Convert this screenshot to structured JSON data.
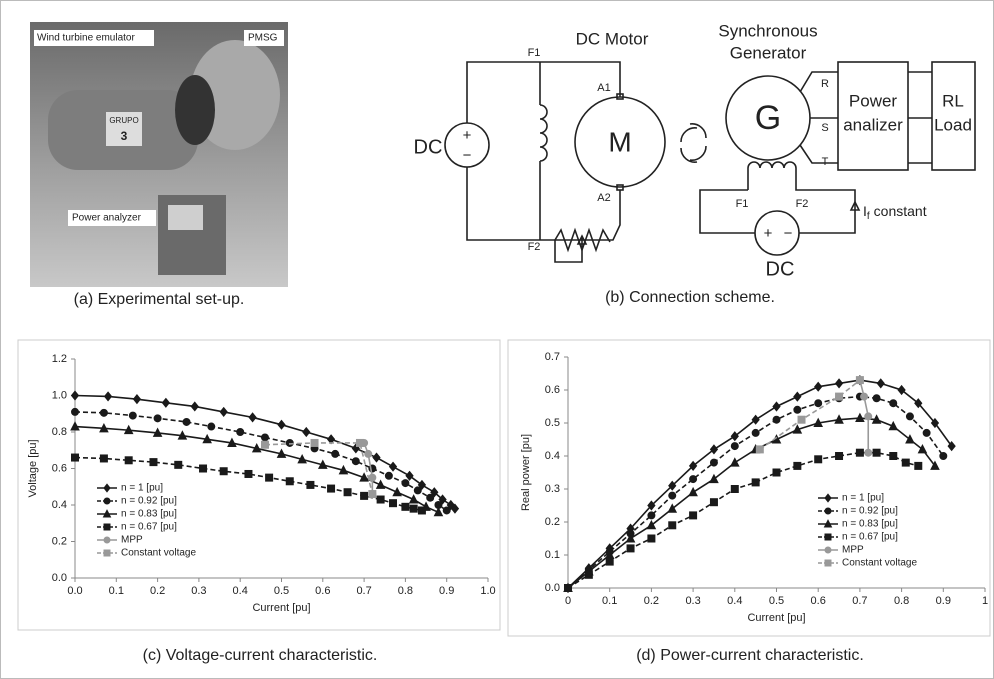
{
  "photo": {
    "labels": [
      "Wind turbine emulator",
      "PMSG",
      "GRUPO",
      "3",
      "Power analyzer"
    ]
  },
  "diagram": {
    "dc_motor": "DC Motor",
    "sync_gen": [
      "Synchronous",
      "Generator"
    ],
    "f1_motor": "F1",
    "f2_motor": "F2",
    "a1": "A1",
    "a2": "A2",
    "motor": "M",
    "dc_left": "DC",
    "plus_left": "+",
    "minus_left": "−",
    "generator": "G",
    "r": "R",
    "s": "S",
    "t": "T",
    "power_analyzer": [
      "Power",
      "analizer"
    ],
    "load": [
      "RL",
      "Load"
    ],
    "f1_gen": "F1",
    "f2_gen": "F2",
    "if_main": "I",
    "if_sub": "f",
    "if_rest": "constant",
    "dc_bottom": "DC",
    "plus_bottom": "+",
    "minus_bottom": "−"
  },
  "captions": [
    "(a) Experimental set-up.",
    "(b) Connection scheme.",
    "(c) Voltage-current characteristic.",
    "(d) Power-current characteristic."
  ],
  "chart_data": [
    {
      "type": "line",
      "x_label": "Current [pu]",
      "y_label": "Voltage [pu]",
      "xlim": [
        0,
        1
      ],
      "ylim": [
        0,
        1.2
      ],
      "xticks": [
        {
          "value": 0,
          "label": "0.0"
        },
        0.1,
        0.2,
        0.3,
        0.4,
        0.5,
        0.6,
        0.7,
        0.8,
        0.9,
        {
          "value": 1,
          "label": "1.0"
        }
      ],
      "yticks": [
        {
          "value": 0,
          "label": "0.0"
        },
        0.2,
        0.4,
        0.6,
        0.8,
        {
          "value": 1,
          "label": "1.0"
        },
        1.2
      ],
      "grid": false,
      "legend": "lower left",
      "series": [
        {
          "name": "n = 1 [pu]",
          "color": "#1a1a1a",
          "marker": "diamond",
          "dash": false,
          "x": [
            0,
            0.08,
            0.15,
            0.22,
            0.29,
            0.36,
            0.43,
            0.5,
            0.56,
            0.62,
            0.68,
            0.73,
            0.77,
            0.81,
            0.84,
            0.87,
            0.89,
            0.91,
            0.92
          ],
          "values": [
            1,
            0.995,
            0.98,
            0.96,
            0.94,
            0.91,
            0.88,
            0.84,
            0.8,
            0.76,
            0.71,
            0.66,
            0.61,
            0.56,
            0.51,
            0.47,
            0.43,
            0.4,
            0.38
          ]
        },
        {
          "name": "n = 0.92 [pu]",
          "color": "#1a1a1a",
          "marker": "circle",
          "dash": true,
          "x": [
            0,
            0.07,
            0.14,
            0.2,
            0.27,
            0.33,
            0.4,
            0.46,
            0.52,
            0.58,
            0.63,
            0.68,
            0.72,
            0.76,
            0.8,
            0.83,
            0.86,
            0.88,
            0.9
          ],
          "values": [
            0.91,
            0.905,
            0.89,
            0.875,
            0.855,
            0.83,
            0.8,
            0.77,
            0.74,
            0.71,
            0.68,
            0.64,
            0.6,
            0.56,
            0.52,
            0.48,
            0.44,
            0.4,
            0.37
          ]
        },
        {
          "name": "n = 0.83 [pu]",
          "color": "#1a1a1a",
          "marker": "triangle",
          "dash": false,
          "x": [
            0,
            0.07,
            0.13,
            0.2,
            0.26,
            0.32,
            0.38,
            0.44,
            0.5,
            0.55,
            0.6,
            0.65,
            0.7,
            0.74,
            0.78,
            0.82,
            0.85,
            0.88
          ],
          "values": [
            0.83,
            0.82,
            0.81,
            0.795,
            0.78,
            0.76,
            0.74,
            0.71,
            0.68,
            0.65,
            0.62,
            0.59,
            0.55,
            0.51,
            0.47,
            0.43,
            0.39,
            0.36
          ]
        },
        {
          "name": "n = 0.67 [pu]",
          "color": "#1a1a1a",
          "marker": "square",
          "dash": true,
          "x": [
            0,
            0.07,
            0.13,
            0.19,
            0.25,
            0.31,
            0.36,
            0.42,
            0.47,
            0.52,
            0.57,
            0.62,
            0.66,
            0.7,
            0.74,
            0.77,
            0.8,
            0.82,
            0.84
          ],
          "values": [
            0.66,
            0.655,
            0.645,
            0.635,
            0.62,
            0.6,
            0.585,
            0.57,
            0.55,
            0.53,
            0.51,
            0.49,
            0.47,
            0.45,
            0.43,
            0.41,
            0.39,
            0.38,
            0.37
          ]
        },
        {
          "name": "MPP",
          "color": "#999999",
          "marker": "circle",
          "dash": false,
          "x": [
            0.7,
            0.71,
            0.72,
            0.72
          ],
          "values": [
            0.74,
            0.68,
            0.55,
            0.46
          ]
        },
        {
          "name": "Constant voltage",
          "color": "#999999",
          "marker": "square",
          "dash": true,
          "x": [
            0.46,
            0.58,
            0.69,
            0.72
          ],
          "values": [
            0.73,
            0.74,
            0.74,
            0.46
          ]
        }
      ]
    },
    {
      "type": "line",
      "x_label": "Current [pu]",
      "y_label": "Real power [pu]",
      "xlim": [
        0,
        1
      ],
      "ylim": [
        0,
        0.7
      ],
      "xticks": [
        0,
        0.1,
        0.2,
        0.3,
        0.4,
        0.5,
        0.6,
        0.7,
        0.8,
        0.9,
        1
      ],
      "yticks": [
        {
          "value": 0,
          "label": "0.0"
        },
        0.1,
        0.2,
        0.3,
        0.4,
        0.5,
        0.6,
        0.7
      ],
      "grid": false,
      "legend": "lower right",
      "series": [
        {
          "name": "n = 1 [pu]",
          "color": "#1a1a1a",
          "marker": "diamond",
          "dash": false,
          "x": [
            0,
            0.05,
            0.1,
            0.15,
            0.2,
            0.25,
            0.3,
            0.35,
            0.4,
            0.45,
            0.5,
            0.55,
            0.6,
            0.65,
            0.7,
            0.75,
            0.8,
            0.84,
            0.88,
            0.92
          ],
          "values": [
            0,
            0.06,
            0.12,
            0.18,
            0.25,
            0.31,
            0.37,
            0.42,
            0.46,
            0.51,
            0.55,
            0.58,
            0.61,
            0.62,
            0.63,
            0.62,
            0.6,
            0.56,
            0.5,
            0.43
          ]
        },
        {
          "name": "n = 0.92 [pu]",
          "color": "#1a1a1a",
          "marker": "circle",
          "dash": true,
          "x": [
            0,
            0.05,
            0.1,
            0.15,
            0.2,
            0.25,
            0.3,
            0.35,
            0.4,
            0.45,
            0.5,
            0.55,
            0.6,
            0.65,
            0.7,
            0.74,
            0.78,
            0.82,
            0.86,
            0.9
          ],
          "values": [
            0,
            0.055,
            0.11,
            0.165,
            0.22,
            0.28,
            0.33,
            0.38,
            0.43,
            0.47,
            0.51,
            0.54,
            0.56,
            0.575,
            0.58,
            0.575,
            0.56,
            0.52,
            0.47,
            0.4
          ]
        },
        {
          "name": "n = 0.83 [pu]",
          "color": "#1a1a1a",
          "marker": "triangle",
          "dash": false,
          "x": [
            0,
            0.05,
            0.1,
            0.15,
            0.2,
            0.25,
            0.3,
            0.35,
            0.4,
            0.45,
            0.5,
            0.55,
            0.6,
            0.65,
            0.7,
            0.74,
            0.78,
            0.82,
            0.85,
            0.88
          ],
          "values": [
            0,
            0.05,
            0.1,
            0.15,
            0.19,
            0.24,
            0.29,
            0.33,
            0.38,
            0.42,
            0.45,
            0.48,
            0.5,
            0.51,
            0.515,
            0.51,
            0.49,
            0.45,
            0.42,
            0.37
          ]
        },
        {
          "name": "n = 0.67 [pu]",
          "color": "#1a1a1a",
          "marker": "square",
          "dash": true,
          "x": [
            0,
            0.05,
            0.1,
            0.15,
            0.2,
            0.25,
            0.3,
            0.35,
            0.4,
            0.45,
            0.5,
            0.55,
            0.6,
            0.65,
            0.7,
            0.74,
            0.78,
            0.81,
            0.84
          ],
          "values": [
            0,
            0.04,
            0.08,
            0.12,
            0.15,
            0.19,
            0.22,
            0.26,
            0.3,
            0.32,
            0.35,
            0.37,
            0.39,
            0.4,
            0.41,
            0.41,
            0.4,
            0.38,
            0.37
          ]
        },
        {
          "name": "MPP",
          "color": "#999999",
          "marker": "circle",
          "dash": false,
          "x": [
            0.7,
            0.71,
            0.72,
            0.72
          ],
          "values": [
            0.63,
            0.58,
            0.52,
            0.41
          ]
        },
        {
          "name": "Constant voltage",
          "color": "#999999",
          "marker": "square",
          "dash": true,
          "x": [
            0.46,
            0.56,
            0.65,
            0.7
          ],
          "values": [
            0.42,
            0.51,
            0.58,
            0.63
          ]
        }
      ]
    }
  ]
}
